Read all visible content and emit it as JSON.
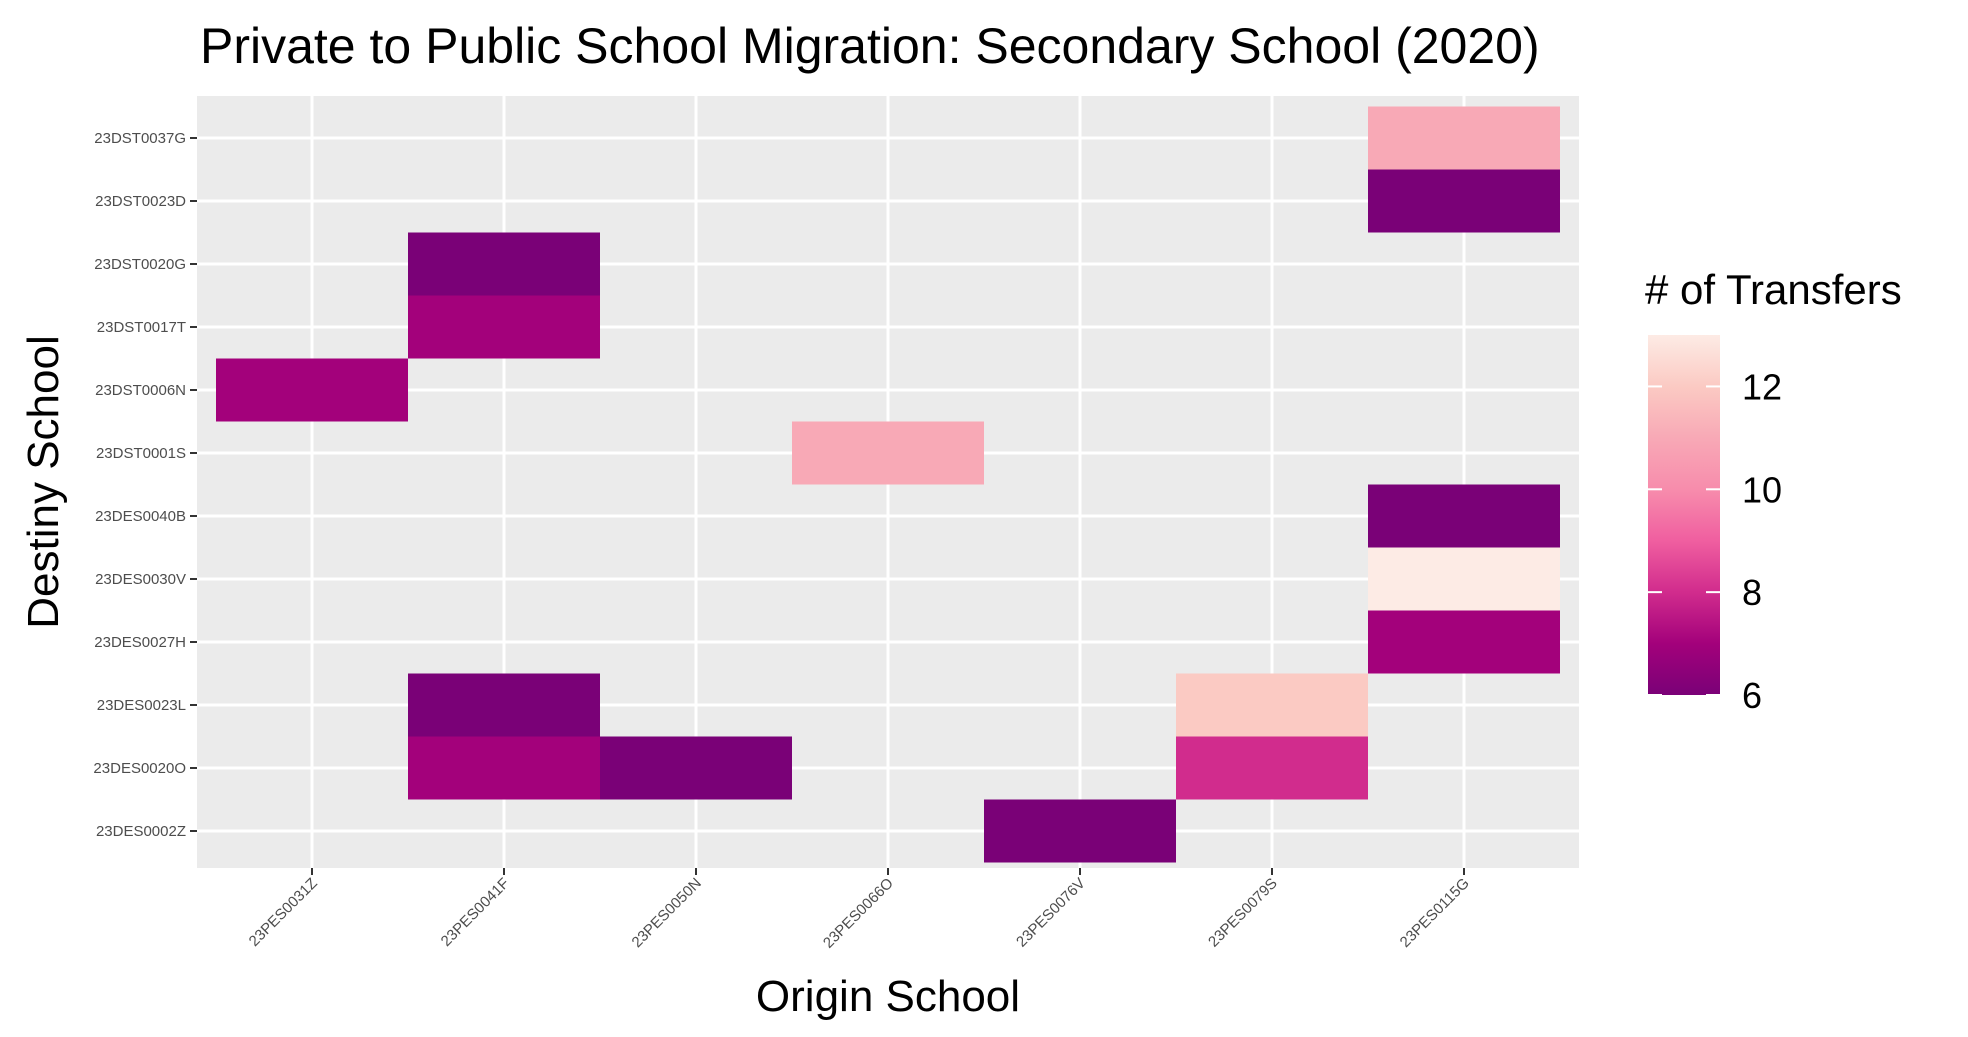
{
  "chart_data": {
    "type": "heatmap",
    "title": "Private to Public School Migration: Secondary School (2020)",
    "xlabel": "Origin School",
    "ylabel": "Destiny School",
    "x_categories": [
      "23PES0031Z",
      "23PES0041F",
      "23PES0050N",
      "23PES0066O",
      "23PES0076V",
      "23PES0079S",
      "23PES0115G"
    ],
    "y_categories": [
      "23DST0037G",
      "23DST0023D",
      "23DST0020G",
      "23DST0017T",
      "23DST0006N",
      "23DST0001S",
      "23DES0040B",
      "23DES0030V",
      "23DES0027H",
      "23DES0023L",
      "23DES0020O",
      "23DES0002Z"
    ],
    "cells": [
      {
        "x": "23PES0115G",
        "y": "23DST0037G",
        "value": 11
      },
      {
        "x": "23PES0115G",
        "y": "23DST0023D",
        "value": 6
      },
      {
        "x": "23PES0041F",
        "y": "23DST0020G",
        "value": 6
      },
      {
        "x": "23PES0041F",
        "y": "23DST0017T",
        "value": 7
      },
      {
        "x": "23PES0031Z",
        "y": "23DST0006N",
        "value": 7
      },
      {
        "x": "23PES0066O",
        "y": "23DST0001S",
        "value": 11
      },
      {
        "x": "23PES0115G",
        "y": "23DES0040B",
        "value": 6
      },
      {
        "x": "23PES0115G",
        "y": "23DES0030V",
        "value": 13
      },
      {
        "x": "23PES0115G",
        "y": "23DES0027H",
        "value": 7
      },
      {
        "x": "23PES0041F",
        "y": "23DES0023L",
        "value": 6
      },
      {
        "x": "23PES0079S",
        "y": "23DES0023L",
        "value": 12
      },
      {
        "x": "23PES0041F",
        "y": "23DES0020O",
        "value": 7
      },
      {
        "x": "23PES0050N",
        "y": "23DES0020O",
        "value": 6
      },
      {
        "x": "23PES0079S",
        "y": "23DES0020O",
        "value": 8
      },
      {
        "x": "23PES0076V",
        "y": "23DES0002Z",
        "value": 6
      }
    ],
    "legend": {
      "title": "# of Transfers",
      "ticks": [
        6,
        8,
        10,
        12
      ],
      "range": [
        6,
        13
      ],
      "placement": "right"
    },
    "colors": {
      "panel_bg": "#ebebeb",
      "grid": "#ffffff",
      "scale": [
        "#7a0177",
        "#ae017e",
        "#dd3497",
        "#f768a1",
        "#fa9fb5",
        "#fcc5c0",
        "#fde0dd",
        "#fff7f3"
      ],
      "scale_stops_value": [
        6,
        7,
        8,
        9,
        10,
        11,
        12,
        13
      ],
      "cell_colors": {
        "6": "#7a0177",
        "7": "#a3017b",
        "8": "#d12c8d",
        "11": "#f8a9b6",
        "12": "#fbcac3",
        "13": "#fdebe5"
      }
    },
    "grid": true
  }
}
